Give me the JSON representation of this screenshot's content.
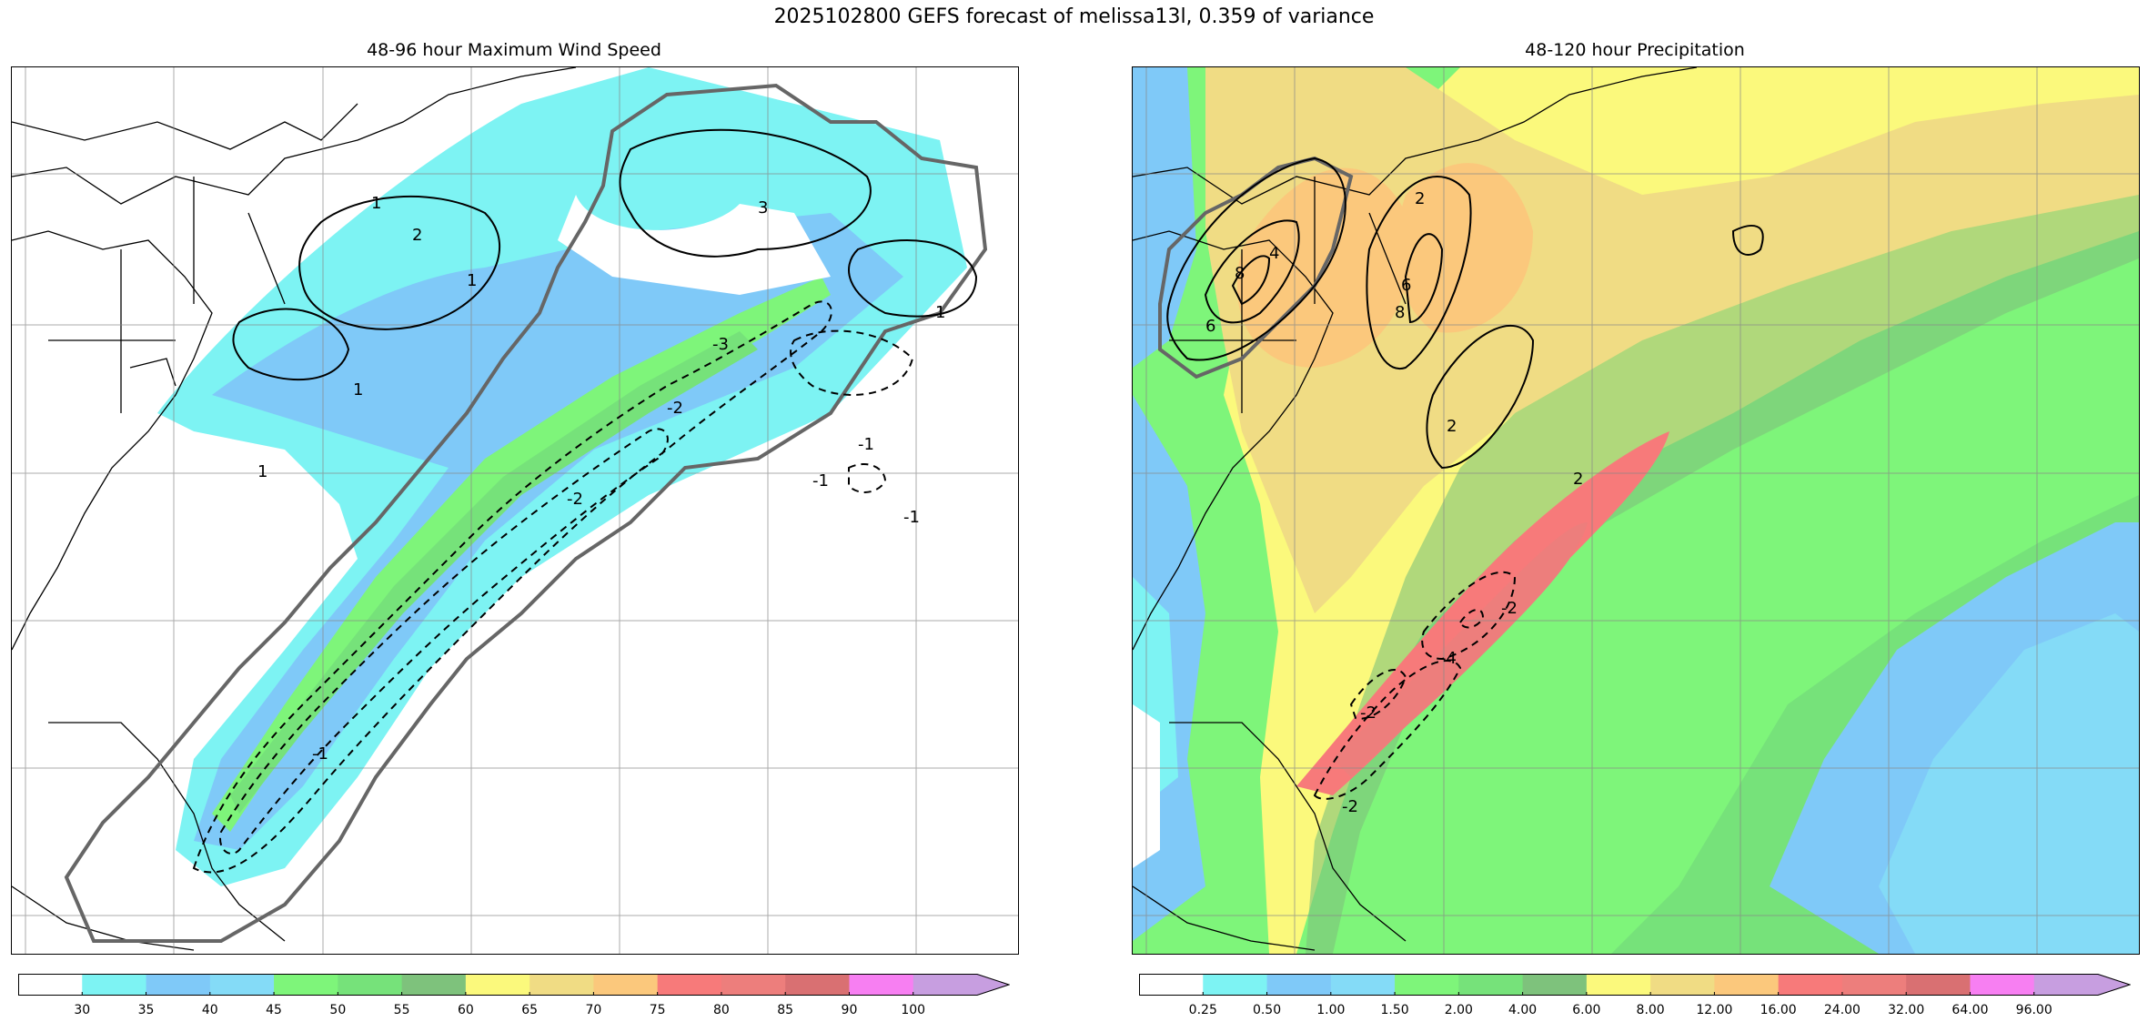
{
  "figure": {
    "title": "2025102800 GEFS forecast of melissa13l, 0.359 of variance"
  },
  "panels": [
    {
      "id": "wind",
      "subtitle": "48-96 hour Maximum Wind Speed",
      "contour_labels": [
        "1",
        "2",
        "3",
        "1",
        "1",
        "1",
        "1",
        "-1",
        "-2",
        "-3",
        "-1",
        "-1",
        "-2",
        "-1"
      ]
    },
    {
      "id": "precip",
      "subtitle": "48-120 hour Precipitation",
      "contour_labels": [
        "8",
        "6",
        "4",
        "8",
        "6",
        "2",
        "2",
        "2",
        "-2",
        "-4",
        "-2",
        "-2"
      ]
    }
  ],
  "colorbars": [
    {
      "id": "wind-colorbar",
      "labels": [
        "30",
        "35",
        "40",
        "45",
        "50",
        "55",
        "60",
        "65",
        "70",
        "75",
        "80",
        "85",
        "90",
        "100"
      ],
      "colors": [
        "#ffffff",
        "#7df3f3",
        "#7fc9f8",
        "#84dbf7",
        "#7ef57a",
        "#76e27a",
        "#7ec27c",
        "#fbf97c",
        "#f0dc84",
        "#fbc87c",
        "#f77a7a",
        "#ed7e7c",
        "#d97072",
        "#f77ff2",
        "#c79ee0"
      ]
    },
    {
      "id": "precip-colorbar",
      "labels": [
        "0.25",
        "0.50",
        "1.00",
        "1.50",
        "2.00",
        "4.00",
        "6.00",
        "8.00",
        "12.00",
        "16.00",
        "24.00",
        "32.00",
        "64.00",
        "96.00"
      ],
      "colors": [
        "#ffffff",
        "#7df3f3",
        "#7fc9f8",
        "#84dbf7",
        "#7ef57a",
        "#76e27a",
        "#7ec27c",
        "#fbf97c",
        "#f0dc84",
        "#fbc87c",
        "#f77a7a",
        "#ed7e7c",
        "#d97072",
        "#f77ff2",
        "#c79ee0"
      ]
    }
  ]
}
